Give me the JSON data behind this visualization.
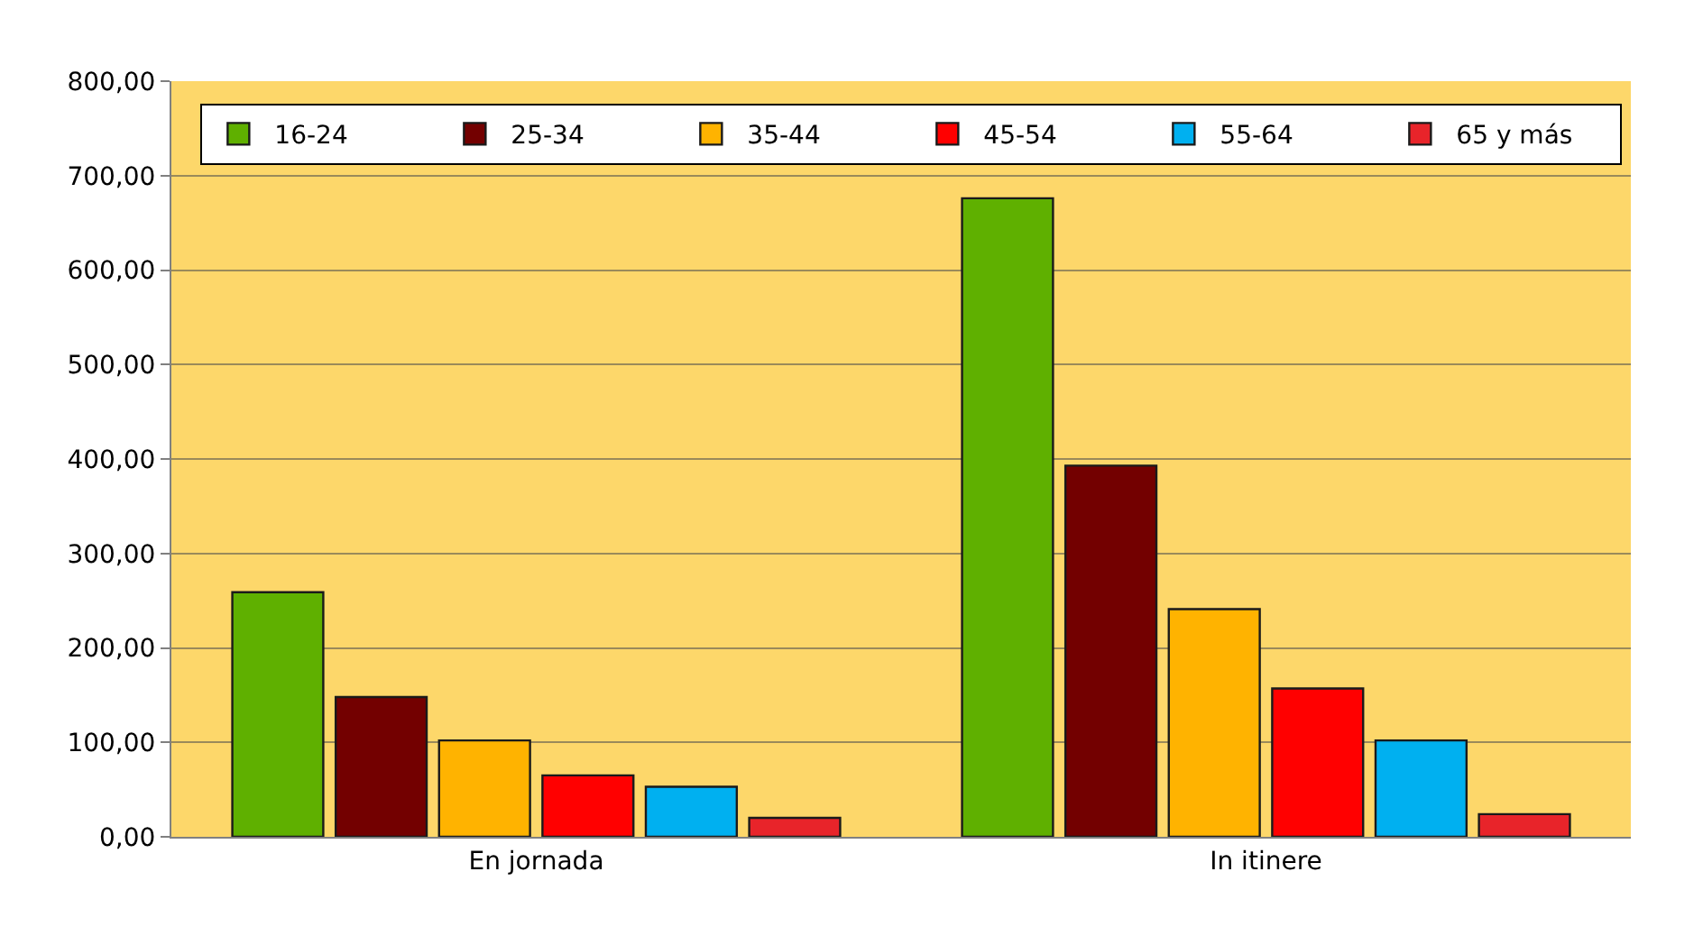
{
  "chart_data": {
    "type": "bar",
    "categories": [
      "En jornada",
      "In itinere"
    ],
    "series": [
      {
        "name": "16-24",
        "color": "#5fb000",
        "values": [
          259,
          676
        ]
      },
      {
        "name": "25-34",
        "color": "#730000",
        "values": [
          148,
          393
        ]
      },
      {
        "name": "35-44",
        "color": "#ffb300",
        "values": [
          102,
          241
        ]
      },
      {
        "name": "45-54",
        "color": "#ff0000",
        "values": [
          65,
          157
        ]
      },
      {
        "name": "55-64",
        "color": "#00b0f0",
        "values": [
          53,
          102
        ]
      },
      {
        "name": "65 y más",
        "color": "#e8242a",
        "values": [
          20,
          24
        ]
      }
    ],
    "ylim": [
      0,
      800
    ],
    "yticks": [
      {
        "value": 0,
        "label": "0,00"
      },
      {
        "value": 100,
        "label": "100,00"
      },
      {
        "value": 200,
        "label": "200,00"
      },
      {
        "value": 300,
        "label": "300,00"
      },
      {
        "value": 400,
        "label": "400,00"
      },
      {
        "value": 500,
        "label": "500,00"
      },
      {
        "value": 600,
        "label": "600,00"
      },
      {
        "value": 700,
        "label": "700,00"
      },
      {
        "value": 800,
        "label": "800,00"
      }
    ],
    "grid": "y",
    "legend": "top left"
  }
}
